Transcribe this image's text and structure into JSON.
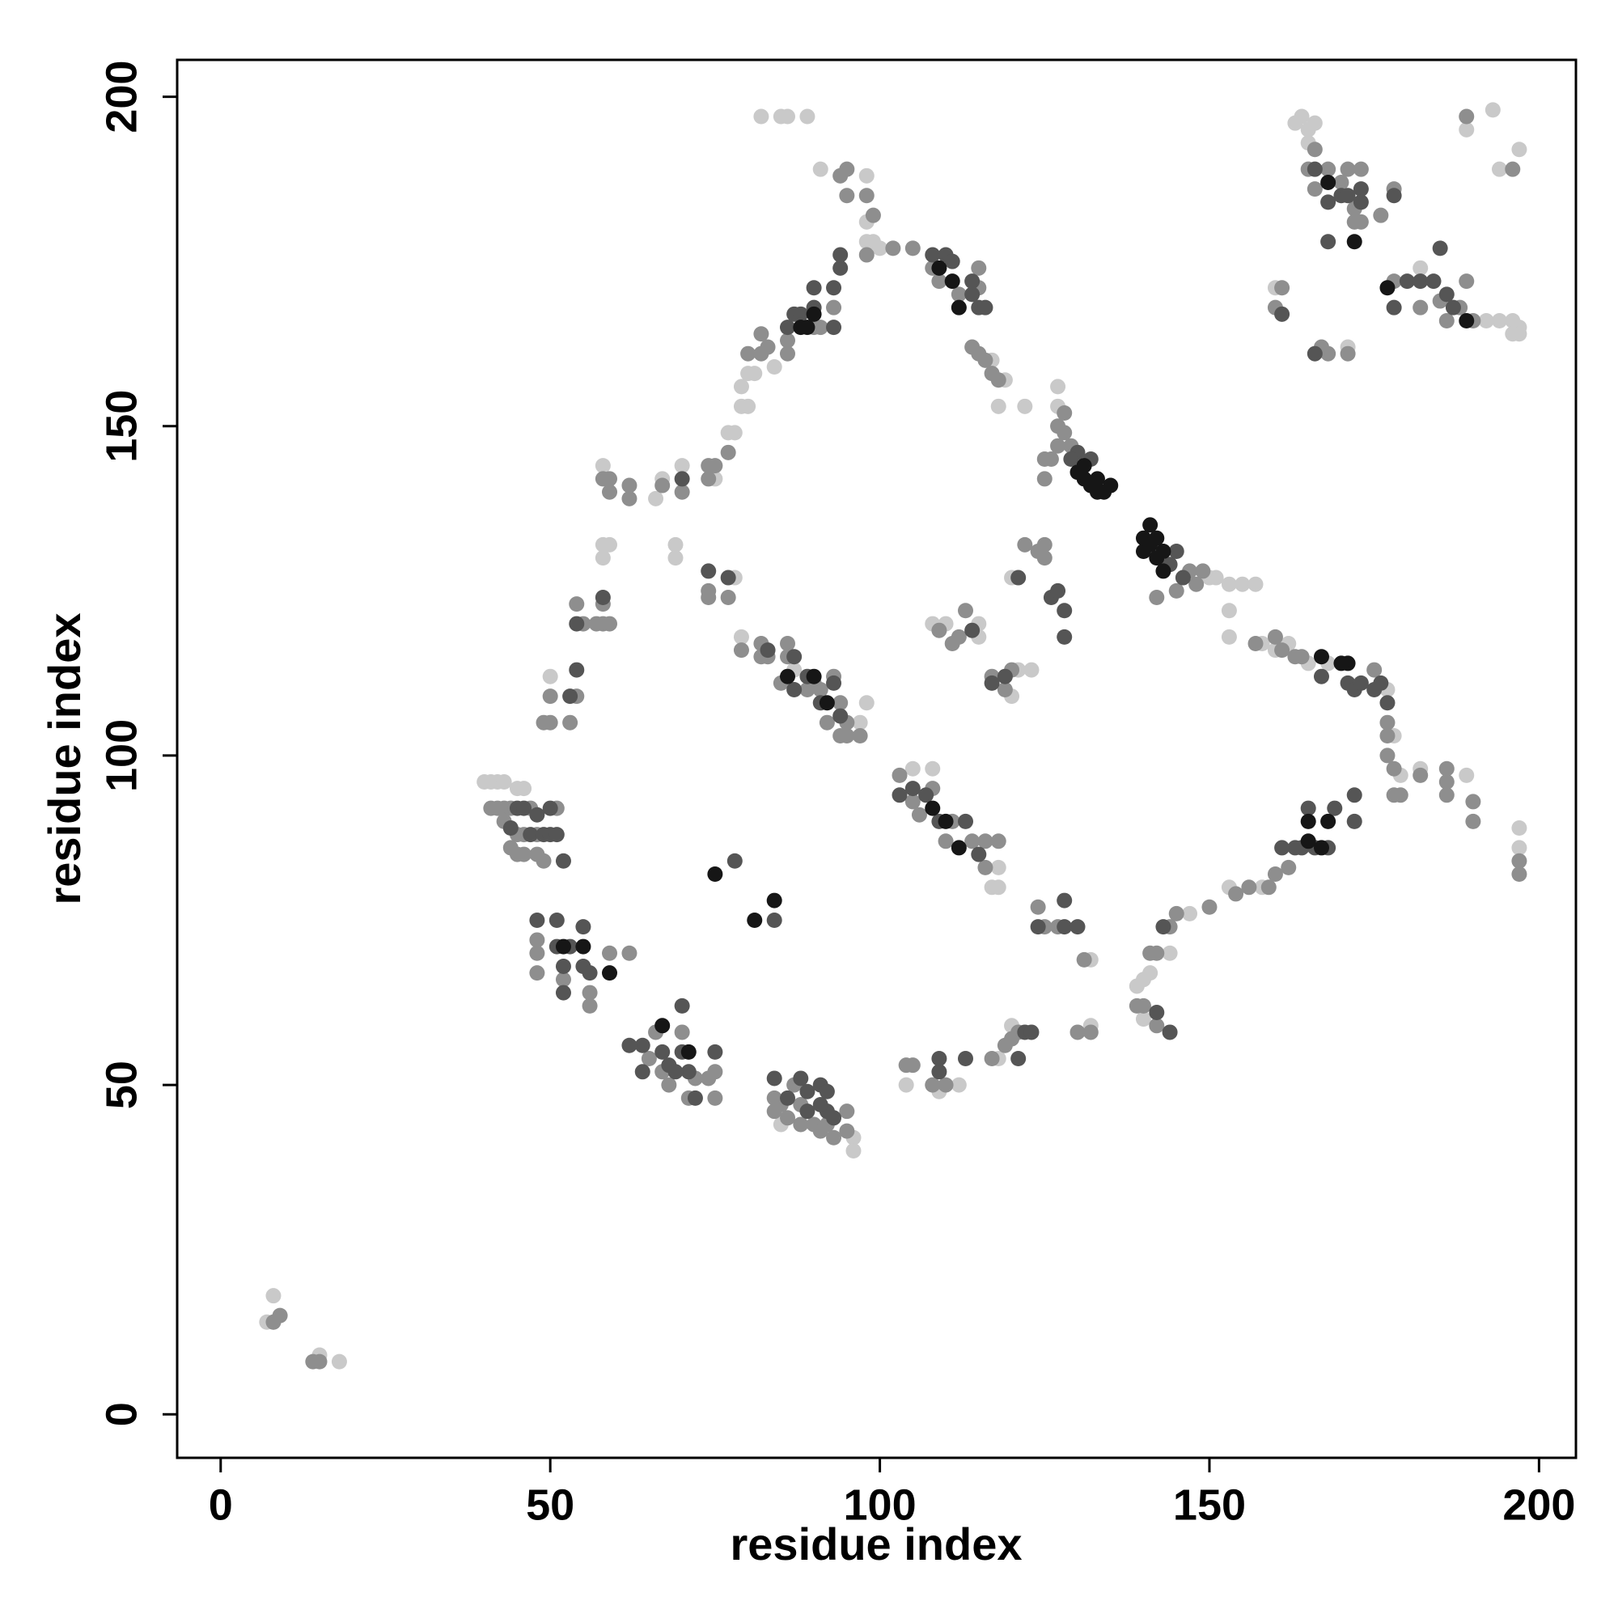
{
  "chart_data": {
    "type": "scatter",
    "xlabel": "residue index",
    "ylabel": "residue index",
    "xlim": [
      -6.6,
      205.6
    ],
    "ylim": [
      -6.6,
      205.6
    ],
    "xticks": [
      0,
      50,
      100,
      150,
      200
    ],
    "yticks": [
      0,
      50,
      100,
      150,
      200
    ],
    "grid": false,
    "series": [
      {
        "color": "#c9c9c9",
        "x": [
          127,
          127,
          150,
          151,
          153,
          155,
          157,
          153,
          153,
          158,
          160,
          162,
          165,
          168,
          177,
          178,
          179,
          182,
          189,
          197,
          197,
          158,
          153,
          147,
          141,
          140,
          139,
          140,
          144,
          132,
          132,
          120,
          118,
          104,
          109,
          112,
          117,
          118,
          118,
          105,
          108,
          69,
          69,
          78,
          79,
          87,
          96,
          96,
          85,
          115,
          115,
          110,
          108,
          120,
          121,
          123,
          120,
          40,
          41,
          42,
          43,
          45,
          46,
          50,
          58,
          58,
          59,
          58,
          66,
          67,
          70,
          75,
          77,
          78,
          79,
          80,
          79,
          80,
          81,
          84,
          98,
          98,
          98,
          99,
          91,
          100,
          82,
          85,
          86,
          89,
          117,
          118,
          119,
          122,
          7,
          8,
          8,
          18,
          15,
          163,
          164,
          165,
          166,
          165,
          192,
          194,
          196,
          197,
          197,
          196,
          193,
          194,
          197,
          189,
          160,
          171,
          182,
          98,
          97
        ],
        "values": [
          153,
          156,
          127,
          127,
          126,
          126,
          126,
          122,
          118,
          117,
          116,
          117,
          114,
          114,
          110,
          103,
          97,
          98,
          97,
          89,
          86,
          80,
          80,
          76,
          67,
          66,
          65,
          60,
          70,
          69,
          59,
          59,
          54,
          50,
          49,
          50,
          80,
          83,
          80,
          98,
          98,
          130,
          132,
          127,
          118,
          113,
          42,
          40,
          44,
          120,
          118,
          120,
          120,
          109,
          113,
          113,
          127,
          96,
          96,
          96,
          96,
          95,
          95,
          112,
          130,
          132,
          132,
          144,
          139,
          142,
          144,
          142,
          149,
          149,
          153,
          153,
          156,
          158,
          158,
          159,
          178,
          181,
          188,
          178,
          189,
          177,
          197,
          197,
          197,
          197,
          160,
          153,
          157,
          153,
          14,
          14,
          18,
          8,
          9,
          196,
          197,
          195,
          196,
          193,
          166,
          166,
          166,
          165,
          164,
          164,
          198,
          189,
          192,
          195,
          171,
          162,
          174,
          108,
          105
        ]
      },
      {
        "color": "#8e8e8e",
        "x": [
          127,
          127,
          128,
          128,
          129,
          125,
          125,
          126,
          147,
          148,
          149,
          142,
          145,
          157,
          160,
          161,
          163,
          164,
          175,
          177,
          177,
          178,
          178,
          179,
          186,
          186,
          190,
          190,
          162,
          160,
          159,
          156,
          154,
          150,
          145,
          144,
          142,
          141,
          140,
          142,
          139,
          120,
          119,
          121,
          117,
          108,
          110,
          104,
          105,
          131,
          132,
          130,
          125,
          127,
          124,
          116,
          114,
          116,
          118,
          110,
          106,
          108,
          111,
          103,
          105,
          74,
          74,
          77,
          79,
          82,
          82,
          83,
          86,
          85,
          86,
          89,
          90,
          91,
          92,
          93,
          94,
          94,
          95,
          95,
          97,
          113,
          112,
          111,
          109,
          117,
          120,
          119,
          125,
          125,
          122,
          124,
          56,
          56,
          52,
          48,
          48,
          48,
          59,
          62,
          65,
          66,
          67,
          68,
          70,
          71,
          75,
          75,
          74,
          72,
          84,
          84,
          85,
          86,
          87,
          88,
          88,
          90,
          91,
          92,
          93,
          95,
          95,
          41,
          42,
          43,
          44,
          47,
          43,
          45,
          46,
          48,
          44,
          45,
          46,
          48,
          49,
          51,
          49,
          50,
          53,
          54,
          50,
          54,
          55,
          57,
          58,
          58,
          59,
          58,
          59,
          59,
          62,
          62,
          67,
          70,
          74,
          75,
          74,
          77,
          80,
          82,
          82,
          83,
          86,
          86,
          90,
          91,
          93,
          95,
          94,
          95,
          98,
          98,
          99,
          102,
          105,
          108,
          109,
          112,
          115,
          115,
          114,
          115,
          116,
          117,
          118,
          15,
          14,
          8,
          9,
          166,
          165,
          166,
          168,
          170,
          171,
          172,
          173,
          173,
          176,
          178,
          160,
          161,
          167,
          171,
          178,
          182,
          185,
          186,
          188,
          190,
          189,
          189,
          196,
          197,
          197,
          182,
          186,
          177,
          172,
          168
        ],
        "values": [
          147,
          150,
          149,
          152,
          147,
          142,
          145,
          145,
          128,
          126,
          128,
          124,
          125,
          117,
          118,
          116,
          115,
          115,
          113,
          105,
          103,
          98,
          94,
          94,
          98,
          94,
          93,
          90,
          83,
          82,
          80,
          80,
          79,
          77,
          76,
          74,
          70,
          70,
          62,
          59,
          62,
          57,
          56,
          58,
          54,
          50,
          50,
          53,
          53,
          69,
          58,
          58,
          74,
          74,
          77,
          87,
          87,
          83,
          87,
          87,
          91,
          95,
          90,
          97,
          93,
          124,
          125,
          124,
          116,
          117,
          115,
          115,
          115,
          111,
          117,
          110,
          111,
          110,
          105,
          112,
          108,
          103,
          105,
          103,
          103,
          122,
          118,
          117,
          119,
          112,
          113,
          110,
          132,
          130,
          132,
          131,
          64,
          62,
          66,
          72,
          70,
          67,
          70,
          70,
          54,
          58,
          52,
          50,
          58,
          48,
          52,
          48,
          51,
          51,
          48,
          46,
          47,
          45,
          50,
          47,
          44,
          44,
          43,
          44,
          42,
          46,
          43,
          92,
          92,
          92,
          92,
          92,
          90,
          88,
          88,
          88,
          86,
          85,
          85,
          85,
          84,
          92,
          105,
          105,
          105,
          109,
          109,
          123,
          120,
          120,
          120,
          123,
          120,
          142,
          142,
          140,
          141,
          139,
          141,
          140,
          142,
          144,
          144,
          146,
          161,
          161,
          164,
          162,
          161,
          163,
          165,
          165,
          168,
          185,
          188,
          189,
          185,
          176,
          182,
          177,
          177,
          174,
          172,
          170,
          171,
          174,
          162,
          161,
          160,
          158,
          157,
          8,
          8,
          14,
          15,
          192,
          189,
          186,
          189,
          187,
          189,
          183,
          181,
          189,
          182,
          186,
          168,
          171,
          162,
          161,
          172,
          168,
          169,
          166,
          168,
          166,
          172,
          197,
          189,
          82,
          84,
          97,
          96,
          100,
          181,
          161
        ]
      },
      {
        "color": "#555555",
        "x": [
          132,
          130,
          129,
          144,
          145,
          146,
          126,
          127,
          128,
          121,
          114,
          87,
          89,
          91,
          93,
          94,
          87,
          83,
          74,
          77,
          107,
          109,
          113,
          115,
          105,
          103,
          166,
          168,
          169,
          172,
          172,
          165,
          163,
          164,
          161,
          171,
          172,
          175,
          176,
          177,
          173,
          167,
          178,
          180,
          182,
          184,
          185,
          186,
          187,
          166,
          168,
          170,
          171,
          173,
          173,
          178,
          168,
          161,
          166,
          86,
          87,
          88,
          90,
          90,
          93,
          93,
          94,
          94,
          108,
          110,
          111,
          114,
          115,
          116,
          114,
          70,
          51,
          51,
          53,
          52,
          52,
          55,
          56,
          48,
          55,
          64,
          67,
          70,
          71,
          68,
          62,
          64,
          84,
          88,
          89,
          91,
          92,
          92,
          91,
          93,
          89,
          86,
          44,
          45,
          46,
          47,
          48,
          49,
          50,
          51,
          52,
          50,
          58,
          54,
          53,
          54,
          124,
          128,
          128,
          130,
          121,
          122,
          123,
          109,
          109,
          113,
          143,
          142,
          144,
          78,
          84,
          70,
          69,
          72,
          75,
          128,
          119,
          117
        ],
        "values": [
          145,
          146,
          145,
          129,
          131,
          127,
          124,
          125,
          118,
          127,
          119,
          110,
          112,
          108,
          111,
          106,
          115,
          116,
          128,
          127,
          94,
          90,
          90,
          85,
          95,
          94,
          86,
          86,
          92,
          90,
          94,
          92,
          86,
          86,
          86,
          111,
          110,
          110,
          111,
          108,
          111,
          112,
          168,
          172,
          172,
          172,
          177,
          170,
          168,
          189,
          184,
          185,
          185,
          186,
          184,
          185,
          178,
          167,
          161,
          165,
          167,
          167,
          168,
          171,
          165,
          171,
          174,
          176,
          176,
          176,
          175,
          170,
          168,
          168,
          172,
          142,
          75,
          71,
          71,
          68,
          64,
          68,
          67,
          75,
          74,
          56,
          55,
          55,
          52,
          53,
          56,
          52,
          51,
          51,
          49,
          50,
          49,
          46,
          47,
          45,
          46,
          48,
          89,
          92,
          92,
          88,
          91,
          88,
          88,
          88,
          84,
          92,
          124,
          120,
          109,
          113,
          74,
          74,
          78,
          74,
          54,
          58,
          58,
          52,
          54,
          54,
          74,
          61,
          58,
          84,
          75,
          62,
          52,
          48,
          55,
          122,
          112,
          111
        ]
      },
      {
        "color": "#161616",
        "x": [
          132,
          133,
          133,
          134,
          135,
          131,
          130,
          131,
          140,
          140,
          141,
          141,
          142,
          142,
          143,
          143,
          75,
          81,
          84,
          67,
          71,
          52,
          55,
          59,
          88,
          90,
          89,
          111,
          112,
          109,
          168,
          172,
          177,
          189,
          165,
          167,
          171,
          92,
          90,
          86,
          112,
          110,
          108,
          167,
          165,
          168,
          170
        ],
        "values": [
          141,
          142,
          140,
          140,
          141,
          142,
          143,
          144,
          131,
          133,
          135,
          132,
          130,
          133,
          128,
          131,
          82,
          75,
          78,
          59,
          55,
          71,
          71,
          67,
          165,
          167,
          165,
          172,
          168,
          174,
          187,
          178,
          171,
          166,
          90,
          115,
          114,
          108,
          112,
          112,
          86,
          90,
          92,
          86,
          87,
          90,
          114
        ]
      }
    ]
  }
}
